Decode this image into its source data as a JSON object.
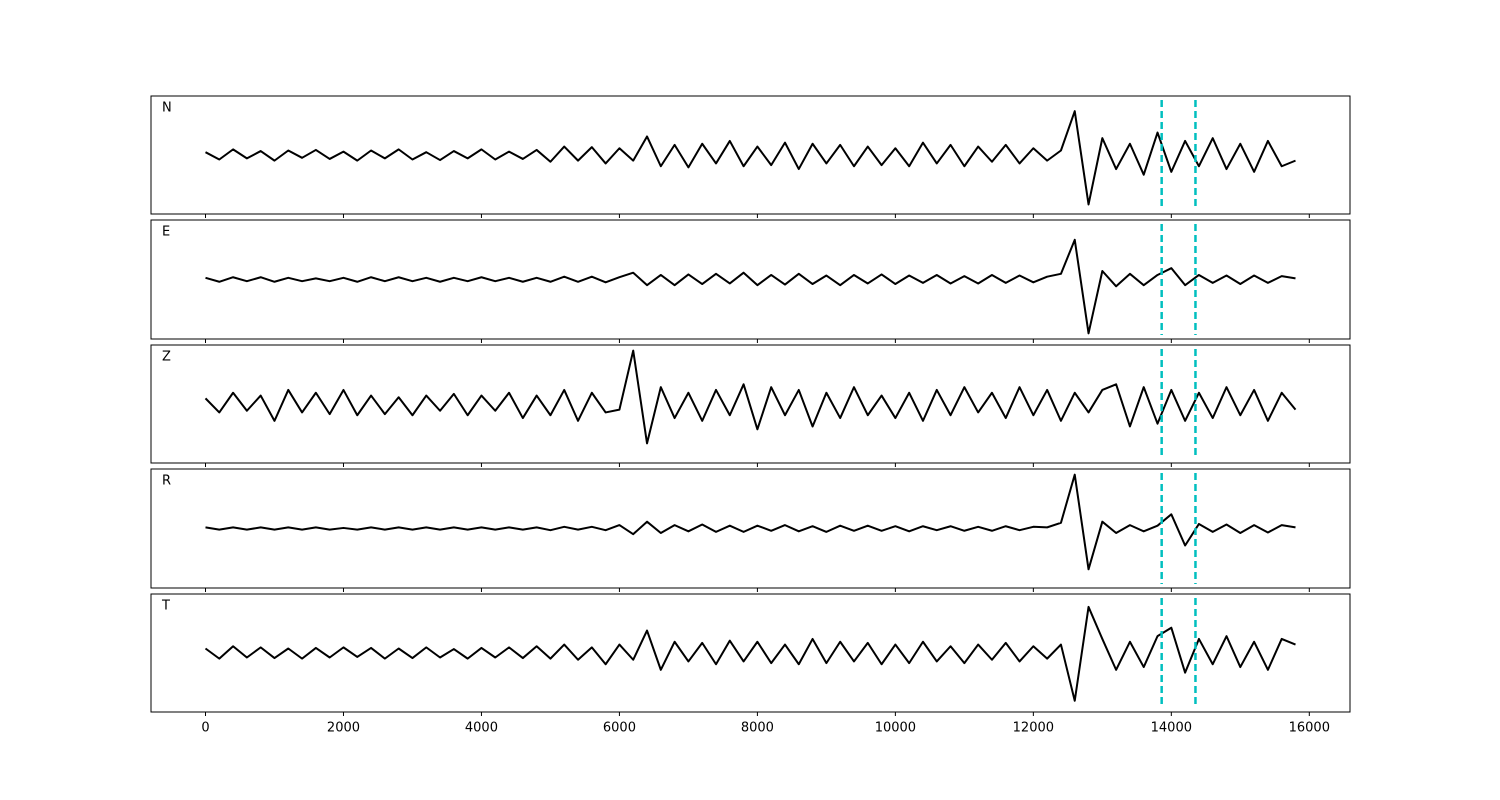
{
  "chart_data": {
    "type": "line",
    "x": [
      0,
      200,
      400,
      600,
      800,
      1000,
      1200,
      1400,
      1600,
      1800,
      2000,
      2200,
      2400,
      2600,
      2800,
      3000,
      3200,
      3400,
      3600,
      3800,
      4000,
      4200,
      4400,
      4600,
      4800,
      5000,
      5200,
      5400,
      5600,
      5800,
      6000,
      6200,
      6400,
      6600,
      6800,
      7000,
      7200,
      7400,
      7600,
      7800,
      8000,
      8200,
      8400,
      8600,
      8800,
      9000,
      9200,
      9400,
      9600,
      9800,
      10000,
      10200,
      10400,
      10600,
      10800,
      11000,
      11200,
      11400,
      11600,
      11800,
      12000,
      12200,
      12400,
      12600,
      12800,
      13000,
      13200,
      13400,
      13600,
      13800,
      14000,
      14200,
      14400,
      14600,
      14800,
      15000,
      15200,
      15400,
      15600,
      15800
    ],
    "series": [
      {
        "name": "N",
        "color": "#000000",
        "values": [
          0.05,
          -0.08,
          0.1,
          -0.06,
          0.07,
          -0.1,
          0.08,
          -0.05,
          0.09,
          -0.07,
          0.06,
          -0.1,
          0.08,
          -0.06,
          0.1,
          -0.08,
          0.05,
          -0.09,
          0.07,
          -0.06,
          0.1,
          -0.08,
          0.06,
          -0.07,
          0.09,
          -0.12,
          0.15,
          -0.1,
          0.14,
          -0.15,
          0.12,
          -0.1,
          0.33,
          -0.2,
          0.18,
          -0.22,
          0.2,
          -0.15,
          0.25,
          -0.2,
          0.15,
          -0.18,
          0.22,
          -0.25,
          0.2,
          -0.15,
          0.18,
          -0.2,
          0.15,
          -0.18,
          0.12,
          -0.2,
          0.22,
          -0.15,
          0.18,
          -0.2,
          0.15,
          -0.12,
          0.18,
          -0.15,
          0.12,
          -0.1,
          0.08,
          0.78,
          -0.88,
          0.3,
          -0.25,
          0.2,
          -0.35,
          0.4,
          -0.3,
          0.25,
          -0.2,
          0.3,
          -0.25,
          0.2,
          -0.3,
          0.25,
          -0.2,
          -0.1
        ]
      },
      {
        "name": "E",
        "color": "#000000",
        "values": [
          0.03,
          -0.04,
          0.04,
          -0.03,
          0.04,
          -0.04,
          0.03,
          -0.03,
          0.02,
          -0.03,
          0.03,
          -0.04,
          0.04,
          -0.03,
          0.04,
          -0.03,
          0.03,
          -0.04,
          0.03,
          -0.03,
          0.04,
          -0.03,
          0.03,
          -0.04,
          0.03,
          -0.04,
          0.05,
          -0.04,
          0.05,
          -0.05,
          0.04,
          0.12,
          -0.1,
          0.08,
          -0.1,
          0.09,
          -0.08,
          0.1,
          -0.07,
          0.12,
          -0.1,
          0.08,
          -0.09,
          0.1,
          -0.08,
          0.07,
          -0.1,
          0.08,
          -0.07,
          0.09,
          -0.08,
          0.07,
          -0.06,
          0.08,
          -0.07,
          0.06,
          -0.07,
          0.08,
          -0.06,
          0.07,
          -0.05,
          0.05,
          0.1,
          0.7,
          -0.95,
          0.15,
          -0.12,
          0.1,
          -0.1,
          0.08,
          0.2,
          -0.1,
          0.08,
          -0.06,
          0.07,
          -0.08,
          0.07,
          -0.06,
          0.06,
          0.02
        ]
      },
      {
        "name": "Z",
        "color": "#000000",
        "values": [
          0.1,
          -0.15,
          0.2,
          -0.12,
          0.15,
          -0.3,
          0.25,
          -0.15,
          0.2,
          -0.18,
          0.25,
          -0.2,
          0.15,
          -0.18,
          0.12,
          -0.2,
          0.15,
          -0.12,
          0.18,
          -0.2,
          0.15,
          -0.12,
          0.2,
          -0.25,
          0.15,
          -0.2,
          0.25,
          -0.3,
          0.2,
          -0.15,
          -0.1,
          0.95,
          -0.7,
          0.3,
          -0.25,
          0.2,
          -0.3,
          0.25,
          -0.2,
          0.35,
          -0.45,
          0.3,
          -0.2,
          0.25,
          -0.4,
          0.2,
          -0.25,
          0.3,
          -0.2,
          0.15,
          -0.25,
          0.2,
          -0.3,
          0.25,
          -0.2,
          0.3,
          -0.15,
          0.2,
          -0.25,
          0.3,
          -0.2,
          0.25,
          -0.3,
          0.2,
          -0.15,
          0.25,
          0.35,
          -0.4,
          0.3,
          -0.35,
          0.25,
          -0.3,
          0.2,
          -0.25,
          0.3,
          -0.2,
          0.25,
          -0.3,
          0.2,
          -0.1
        ]
      },
      {
        "name": "R",
        "color": "#000000",
        "values": [
          0.02,
          -0.02,
          0.02,
          -0.02,
          0.02,
          -0.02,
          0.02,
          -0.02,
          0.02,
          -0.02,
          0.01,
          -0.02,
          0.02,
          -0.02,
          0.02,
          -0.02,
          0.02,
          -0.02,
          0.02,
          -0.02,
          0.02,
          -0.02,
          0.02,
          -0.02,
          0.02,
          -0.03,
          0.03,
          -0.02,
          0.03,
          -0.03,
          0.06,
          -0.1,
          0.12,
          -0.08,
          0.06,
          -0.05,
          0.07,
          -0.06,
          0.05,
          -0.06,
          0.05,
          -0.04,
          0.06,
          -0.05,
          0.04,
          -0.06,
          0.05,
          -0.04,
          0.05,
          -0.04,
          0.04,
          -0.05,
          0.04,
          -0.03,
          0.04,
          -0.04,
          0.03,
          -0.04,
          0.04,
          -0.03,
          0.03,
          0.02,
          0.1,
          0.95,
          -0.72,
          0.12,
          -0.08,
          0.06,
          -0.05,
          0.05,
          0.25,
          -0.3,
          0.08,
          -0.06,
          0.07,
          -0.08,
          0.06,
          -0.07,
          0.06,
          0.02
        ]
      },
      {
        "name": "T",
        "color": "#000000",
        "values": [
          0.08,
          -0.1,
          0.12,
          -0.08,
          0.1,
          -0.09,
          0.08,
          -0.1,
          0.09,
          -0.08,
          0.1,
          -0.07,
          0.09,
          -0.1,
          0.08,
          -0.09,
          0.1,
          -0.08,
          0.07,
          -0.1,
          0.09,
          -0.08,
          0.1,
          -0.09,
          0.12,
          -0.1,
          0.15,
          -0.12,
          0.1,
          -0.2,
          0.15,
          -0.12,
          0.4,
          -0.3,
          0.2,
          -0.15,
          0.18,
          -0.2,
          0.22,
          -0.15,
          0.2,
          -0.18,
          0.15,
          -0.2,
          0.25,
          -0.18,
          0.2,
          -0.15,
          0.18,
          -0.2,
          0.15,
          -0.18,
          0.2,
          -0.15,
          0.12,
          -0.18,
          0.15,
          -0.12,
          0.18,
          -0.15,
          0.12,
          -0.1,
          0.15,
          -0.85,
          0.82,
          0.25,
          -0.3,
          0.2,
          -0.25,
          0.3,
          0.45,
          -0.35,
          0.25,
          -0.2,
          0.3,
          -0.25,
          0.2,
          -0.3,
          0.25,
          0.15
        ]
      }
    ],
    "xlim": [
      -790,
      16590
    ],
    "xticks": [
      0,
      2000,
      4000,
      6000,
      8000,
      10000,
      12000,
      14000,
      16000
    ],
    "ylim": [
      -1.05,
      1.05
    ],
    "vlines": [
      {
        "x": 13860,
        "color": "#00bfbf"
      },
      {
        "x": 14350,
        "color": "#00bfbf"
      }
    ]
  }
}
